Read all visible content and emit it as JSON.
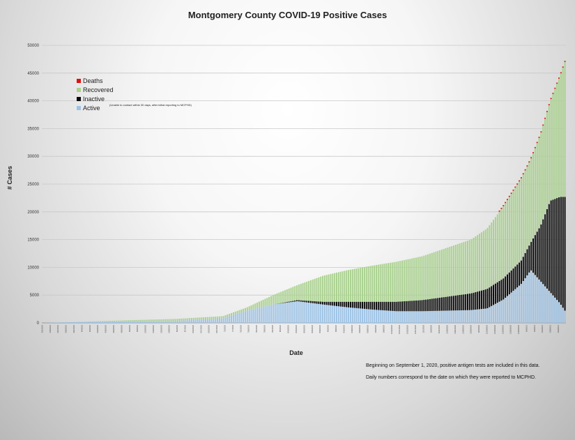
{
  "chart_data": {
    "type": "bar",
    "stacked": true,
    "title": "Montgomery County COVID-19 Positive Cases",
    "xlabel": "Date",
    "ylabel": "# Cases",
    "ylim": [
      0,
      50000
    ],
    "yticks": [
      0,
      5000,
      10000,
      15000,
      20000,
      25000,
      30000,
      35000,
      40000,
      45000,
      50000
    ],
    "grid": true,
    "legend_position": "top-left",
    "x_start_date": "2020-03-11",
    "x_end_date": "2021-01-27",
    "bar_count": 264,
    "series_order_bottom_to_top": [
      "Active",
      "Inactive",
      "Recovered",
      "Deaths"
    ],
    "legend": [
      {
        "name": "Deaths",
        "color": "#e01010"
      },
      {
        "name": "Recovered",
        "color": "#a9d18e"
      },
      {
        "name": "Inactive",
        "color": "#0a0a0a"
      },
      {
        "name": "Active",
        "color": "#9dc3e6"
      }
    ],
    "inactive_note": "(Unable to contact within 30 days, after initial reporting to MCPHD)",
    "sampled_points": [
      {
        "date": "2020-03-11",
        "total": 5,
        "active": 5,
        "inactive": 0,
        "deaths": 0
      },
      {
        "date": "2020-03-31",
        "total": 150,
        "active": 140,
        "inactive": 0,
        "deaths": 2
      },
      {
        "date": "2020-04-30",
        "total": 450,
        "active": 300,
        "inactive": 0,
        "deaths": 10
      },
      {
        "date": "2020-05-31",
        "total": 700,
        "active": 350,
        "inactive": 0,
        "deaths": 15
      },
      {
        "date": "2020-06-30",
        "total": 1200,
        "active": 800,
        "inactive": 0,
        "deaths": 18
      },
      {
        "date": "2020-07-15",
        "total": 2800,
        "active": 2200,
        "inactive": 0,
        "deaths": 20
      },
      {
        "date": "2020-07-31",
        "total": 5000,
        "active": 3300,
        "inactive": 0,
        "deaths": 30
      },
      {
        "date": "2020-08-15",
        "total": 6800,
        "active": 3900,
        "inactive": 200,
        "deaths": 40
      },
      {
        "date": "2020-08-31",
        "total": 8500,
        "active": 3300,
        "inactive": 500,
        "deaths": 50
      },
      {
        "date": "2020-09-15",
        "total": 9500,
        "active": 2800,
        "inactive": 1000,
        "deaths": 60
      },
      {
        "date": "2020-09-30",
        "total": 10300,
        "active": 2400,
        "inactive": 1400,
        "deaths": 70
      },
      {
        "date": "2020-10-15",
        "total": 11000,
        "active": 2100,
        "inactive": 1700,
        "deaths": 80
      },
      {
        "date": "2020-10-31",
        "total": 12000,
        "active": 2100,
        "inactive": 2000,
        "deaths": 90
      },
      {
        "date": "2020-11-15",
        "total": 13500,
        "active": 2200,
        "inactive": 2500,
        "deaths": 100
      },
      {
        "date": "2020-11-30",
        "total": 15000,
        "active": 2300,
        "inactive": 3000,
        "deaths": 110
      },
      {
        "date": "2020-12-10",
        "total": 17000,
        "active": 2600,
        "inactive": 3500,
        "deaths": 120
      },
      {
        "date": "2020-12-20",
        "total": 21000,
        "active": 4200,
        "inactive": 3800,
        "deaths": 140
      },
      {
        "date": "2020-12-31",
        "total": 26000,
        "active": 7000,
        "inactive": 4200,
        "deaths": 160
      },
      {
        "date": "2021-01-06",
        "total": 29500,
        "active": 9500,
        "inactive": 5000,
        "deaths": 180
      },
      {
        "date": "2021-01-12",
        "total": 34000,
        "active": 7500,
        "inactive": 10000,
        "deaths": 200
      },
      {
        "date": "2021-01-18",
        "total": 40000,
        "active": 5500,
        "inactive": 16500,
        "deaths": 220
      },
      {
        "date": "2021-01-24",
        "total": 44500,
        "active": 3500,
        "inactive": 19200,
        "deaths": 240
      },
      {
        "date": "2021-01-27",
        "total": 47000,
        "active": 2200,
        "inactive": 20500,
        "deaths": 260
      }
    ]
  },
  "notes": [
    "Beginning on September 1, 2020, positive antigen tests are included in this data.",
    "Daily numbers correspond to the date on which they were reported to MCPHD."
  ]
}
